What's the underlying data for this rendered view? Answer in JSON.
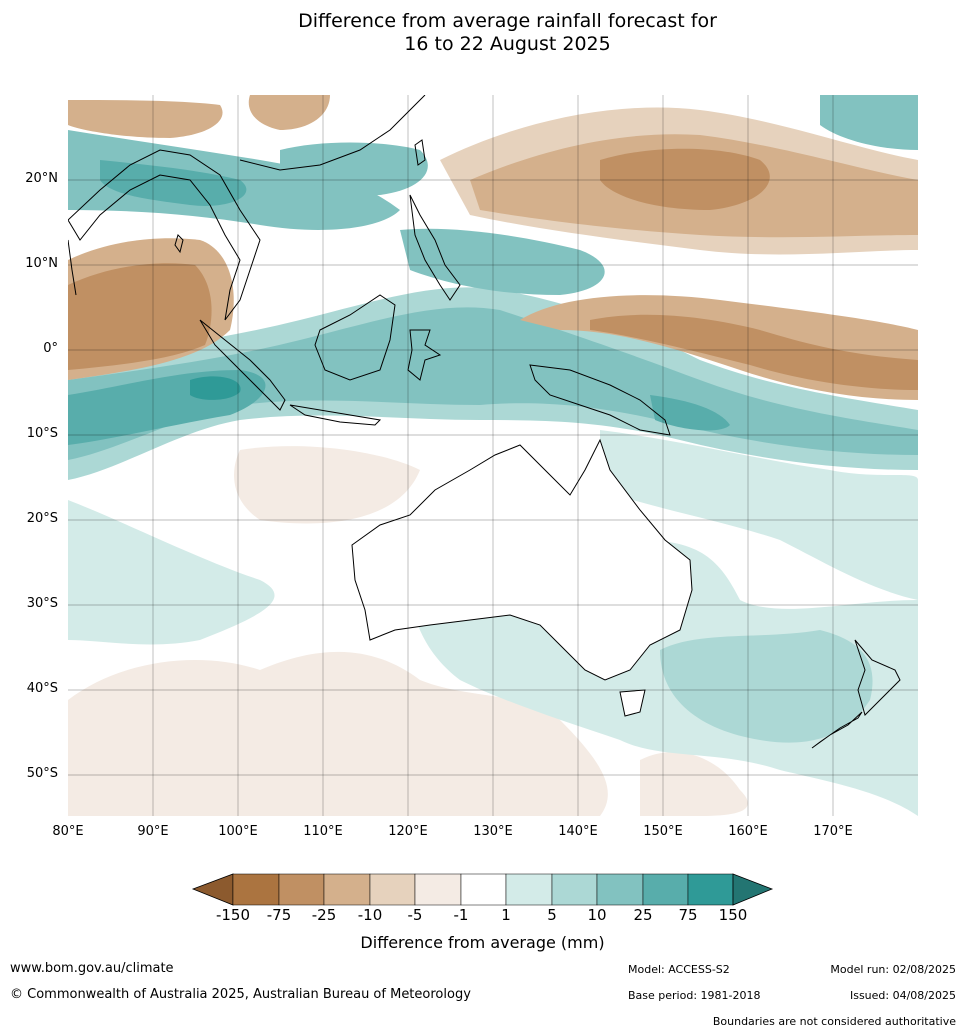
{
  "title": {
    "line1": "Difference from average rainfall forecast for",
    "line2": "16 to 22 August 2025"
  },
  "map": {
    "lat_labels": [
      "20°N",
      "10°N",
      "0°",
      "10°S",
      "20°S",
      "30°S",
      "40°S",
      "50°S"
    ],
    "lon_labels": [
      "80°E",
      "90°E",
      "100°E",
      "110°E",
      "120°E",
      "130°E",
      "140°E",
      "150°E",
      "160°E",
      "170°E"
    ],
    "lat_extent": [
      -55,
      30
    ],
    "lon_extent": [
      80,
      180
    ]
  },
  "colorbar": {
    "ticks": [
      "-150",
      "-75",
      "-25",
      "-10",
      "-5",
      "-1",
      "1",
      "5",
      "10",
      "25",
      "75",
      "150"
    ],
    "colors": [
      "#8c5a2e",
      "#ab7440",
      "#c09063",
      "#d4b08c",
      "#e6d2bd",
      "#f4ebe4",
      "#ffffff",
      "#d3ebe8",
      "#acd8d5",
      "#82c2c0",
      "#58adab",
      "#2f9a97",
      "#237572"
    ],
    "title": "Difference from average (mm)"
  },
  "footer": {
    "url": "www.bom.gov.au/climate",
    "copyright": "© Commonwealth of Australia 2025, Australian Bureau of Meteorology",
    "model": "Model: ACCESS-S2",
    "base_period": "Base period: 1981-2018",
    "model_run": "Model run: 02/08/2025",
    "issued": "Issued: 04/08/2025",
    "disclaimer": "Boundaries are not considered authoritative"
  }
}
